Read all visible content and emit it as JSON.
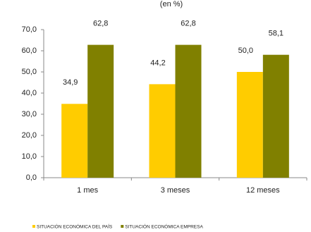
{
  "chart_data": {
    "type": "bar",
    "title": "(en %)",
    "categories": [
      "1 mes",
      "3 meses",
      "12 meses"
    ],
    "series": [
      {
        "name": "SITUACIÓN ECONÓMICA DEL PAÍS",
        "color": "#ffcc00",
        "values": [
          34.9,
          44.2,
          50.0
        ],
        "value_labels": [
          "34,9",
          "44,2",
          "50,0"
        ]
      },
      {
        "name": "SITUACIÓN ECONÓMICA EMPRESA",
        "color": "#808000",
        "values": [
          62.8,
          62.8,
          58.1
        ],
        "value_labels": [
          "62,8",
          "62,8",
          "58,1"
        ]
      }
    ],
    "ylim": [
      0,
      70
    ],
    "yticks": [
      {
        "value": 0,
        "label": "0,0"
      },
      {
        "value": 10,
        "label": "10,0"
      },
      {
        "value": 20,
        "label": "20,0"
      },
      {
        "value": 30,
        "label": "30,0"
      },
      {
        "value": 40,
        "label": "40,0"
      },
      {
        "value": 50,
        "label": "50,0"
      },
      {
        "value": 60,
        "label": "60,0"
      },
      {
        "value": 70,
        "label": "70,0"
      }
    ],
    "grid": false,
    "legend": "bottom"
  }
}
